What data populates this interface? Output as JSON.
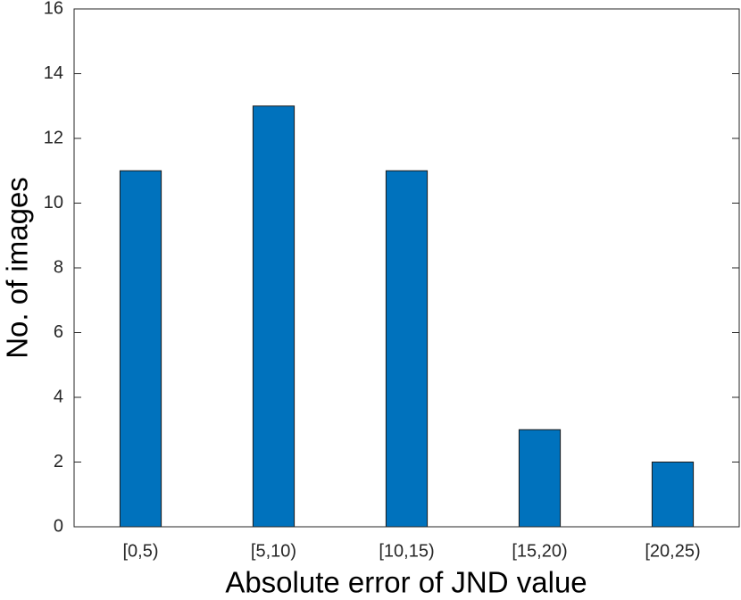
{
  "chart_data": {
    "type": "bar",
    "x_label": "Absolute error of JND value",
    "y_label": "No. of images",
    "categories": [
      "[0,5)",
      "[5,10)",
      "[10,15)",
      "[15,20)",
      "[20,25)"
    ],
    "values": [
      11,
      13,
      11,
      3,
      2
    ],
    "color": "#0072bd",
    "ylim": [
      0,
      16
    ],
    "yticks": [
      0,
      2,
      4,
      6,
      8,
      10,
      12,
      14,
      16
    ],
    "grid": false
  }
}
